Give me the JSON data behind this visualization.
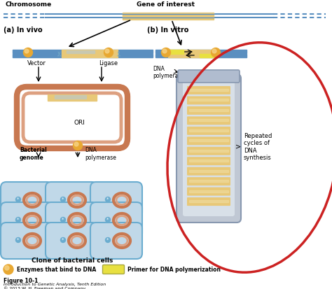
{
  "bg_color": "#ffffff",
  "blue_dna": "#5a8fc0",
  "gold_gene": "#e8c878",
  "orange_enzyme": "#e8a832",
  "red_circle": "#cc2222",
  "cell_blue": "#c0d8e8",
  "cell_edge": "#6aaccf",
  "plasmid_outer": "#c87850",
  "plasmid_inner": "#dda080",
  "gray_tube": "#c0c8d4",
  "gray_tube_light": "#d8e0e8",
  "stripe_gold": "#e8c878",
  "yellow_primer": "#e8e040",
  "scissors_color": "#7ab0c8",
  "chr_label": "Chromosome",
  "gene_label": "Gene of interest",
  "a_label": "(a) In vivo",
  "b_label": "(b) In vitro",
  "vector_label": "Vector",
  "ligase_label": "Ligase",
  "ori_label": "ORI",
  "dna_pol_a_label": "DNA\npolymerase",
  "bacterial_label": "Bacterial\ngenome",
  "clone_label": "Clone of bacterial cells",
  "repeated_label": "Repeated\ncycles of\nDNA\nsynthesis",
  "enzyme_legend": "Enzymes that bind to DNA",
  "primer_legend": "Primer for DNA polymerization",
  "fig_label": "Figure 10-1",
  "fig_sub1": "Introduction to Genetic Analysis, Tenth Edition",
  "fig_sub2": "© 2013 W. H. Freeman and Company"
}
